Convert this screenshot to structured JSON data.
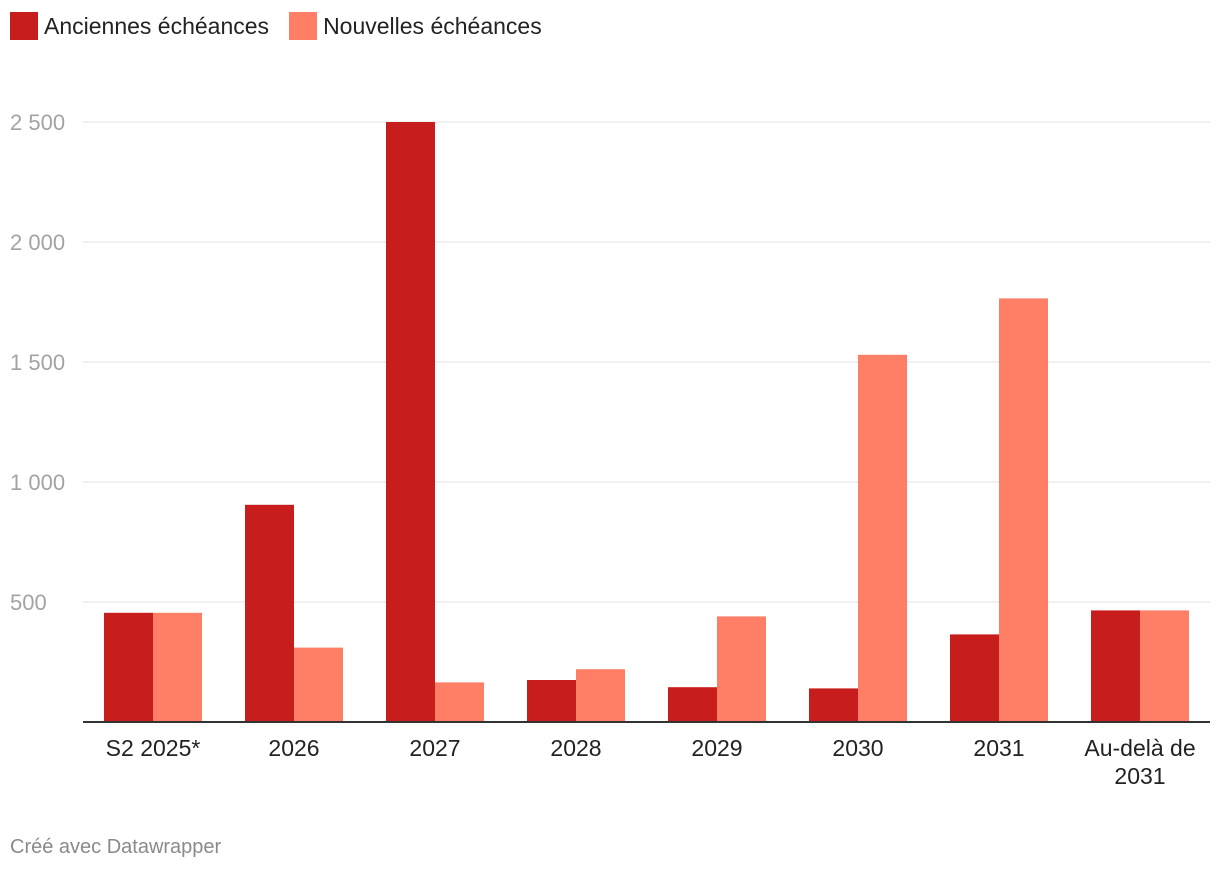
{
  "chart_data": {
    "type": "bar",
    "categories": [
      "S2 2025*",
      "2026",
      "2027",
      "2028",
      "2029",
      "2030",
      "2031",
      "Au-delà de 2031"
    ],
    "series": [
      {
        "name": "Anciennes échéances",
        "color": "#c71e1d",
        "values": [
          455,
          905,
          2500,
          175,
          145,
          140,
          365,
          465
        ]
      },
      {
        "name": "Nouvelles échéances",
        "color": "#ff7f66",
        "values": [
          455,
          310,
          165,
          220,
          440,
          1530,
          1765,
          465
        ]
      }
    ],
    "y_ticks": [
      {
        "value": 500,
        "label": "500"
      },
      {
        "value": 1000,
        "label": "1 000"
      },
      {
        "value": 1500,
        "label": "1 500"
      },
      {
        "value": 2000,
        "label": "2 000"
      },
      {
        "value": 2500,
        "label": "2 500"
      }
    ],
    "ylim": [
      0,
      2500
    ],
    "xlabel": "",
    "ylabel": "",
    "legend_position": "top-left"
  },
  "legend": {
    "old_label": "Anciennes échéances",
    "new_label": "Nouvelles échéances"
  },
  "credit": "Créé avec Datawrapper"
}
